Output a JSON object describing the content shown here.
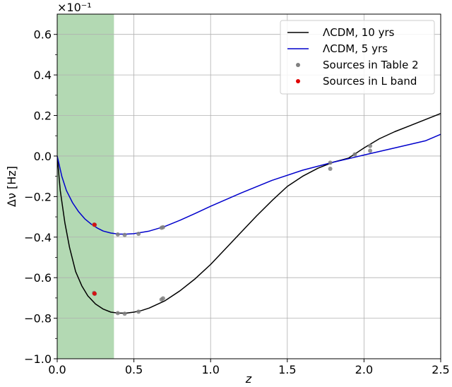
{
  "chart_data": {
    "type": "line",
    "xlabel": "z",
    "ylabel": "Δν  [Hz]",
    "offset_label": "×10⁻¹",
    "xlim": [
      0.0,
      2.5
    ],
    "ylim": [
      -1.0,
      0.7
    ],
    "x_ticks": [
      0.0,
      0.5,
      1.0,
      1.5,
      2.0,
      2.5
    ],
    "x_tick_labels": [
      "0.0",
      "0.5",
      "1.0",
      "1.5",
      "2.0",
      "2.5"
    ],
    "y_ticks": [
      -1.0,
      -0.8,
      -0.6,
      -0.4,
      -0.2,
      0.0,
      0.2,
      0.4,
      0.6
    ],
    "y_tick_labels": [
      "−1.0",
      "−0.8",
      "−0.6",
      "−0.4",
      "−0.2",
      "0.0",
      "0.2",
      "0.4",
      "0.6"
    ],
    "grid": true,
    "shaded_region": {
      "x": [
        0.0,
        0.37
      ],
      "color": "#b3d9b3"
    },
    "legend_position": "top-right",
    "series": [
      {
        "name": "ΛCDM, 10 yrs",
        "kind": "line",
        "color": "#000000",
        "x": [
          0.0,
          0.02,
          0.05,
          0.08,
          0.12,
          0.16,
          0.2,
          0.25,
          0.3,
          0.35,
          0.4,
          0.45,
          0.5,
          0.55,
          0.6,
          0.7,
          0.8,
          0.9,
          1.0,
          1.1,
          1.2,
          1.3,
          1.4,
          1.5,
          1.6,
          1.7,
          1.8,
          1.9,
          2.0,
          2.1,
          2.2,
          2.3,
          2.4,
          2.5
        ],
        "y": [
          0.0,
          -0.17,
          -0.33,
          -0.45,
          -0.57,
          -0.64,
          -0.69,
          -0.73,
          -0.755,
          -0.77,
          -0.775,
          -0.775,
          -0.77,
          -0.762,
          -0.75,
          -0.715,
          -0.665,
          -0.605,
          -0.535,
          -0.455,
          -0.375,
          -0.295,
          -0.22,
          -0.15,
          -0.1,
          -0.06,
          -0.03,
          -0.01,
          0.04,
          0.085,
          0.12,
          0.15,
          0.18,
          0.21
        ]
      },
      {
        "name": "ΛCDM, 5 yrs",
        "kind": "line",
        "color": "#0000cc",
        "x": [
          0.0,
          0.03,
          0.06,
          0.1,
          0.14,
          0.18,
          0.22,
          0.26,
          0.3,
          0.35,
          0.4,
          0.45,
          0.5,
          0.6,
          0.7,
          0.8,
          0.9,
          1.0,
          1.2,
          1.4,
          1.6,
          1.8,
          1.9,
          2.0,
          2.2,
          2.4,
          2.5
        ],
        "y": [
          0.0,
          -0.1,
          -0.17,
          -0.23,
          -0.275,
          -0.31,
          -0.335,
          -0.355,
          -0.37,
          -0.38,
          -0.385,
          -0.385,
          -0.383,
          -0.37,
          -0.348,
          -0.317,
          -0.283,
          -0.248,
          -0.182,
          -0.12,
          -0.07,
          -0.03,
          -0.013,
          0.005,
          0.04,
          0.075,
          0.107
        ]
      },
      {
        "name": "Sources in Table 2",
        "kind": "scatter",
        "color": "#808080",
        "x": [
          0.24,
          0.245,
          0.395,
          0.44,
          0.53,
          0.68,
          0.69,
          0.24,
          0.245,
          0.395,
          0.44,
          0.53,
          0.68,
          0.69,
          1.78,
          1.78,
          1.94,
          2.04,
          2.04
        ],
        "y": [
          -0.675,
          -0.68,
          -0.775,
          -0.778,
          -0.768,
          -0.708,
          -0.702,
          -0.338,
          -0.34,
          -0.387,
          -0.389,
          -0.384,
          -0.354,
          -0.351,
          -0.063,
          -0.033,
          0.008,
          0.05,
          0.026
        ]
      },
      {
        "name": "Sources in L band",
        "kind": "scatter",
        "color": "#e00000",
        "x": [
          0.243,
          0.243
        ],
        "y": [
          -0.678,
          -0.339
        ]
      }
    ]
  }
}
